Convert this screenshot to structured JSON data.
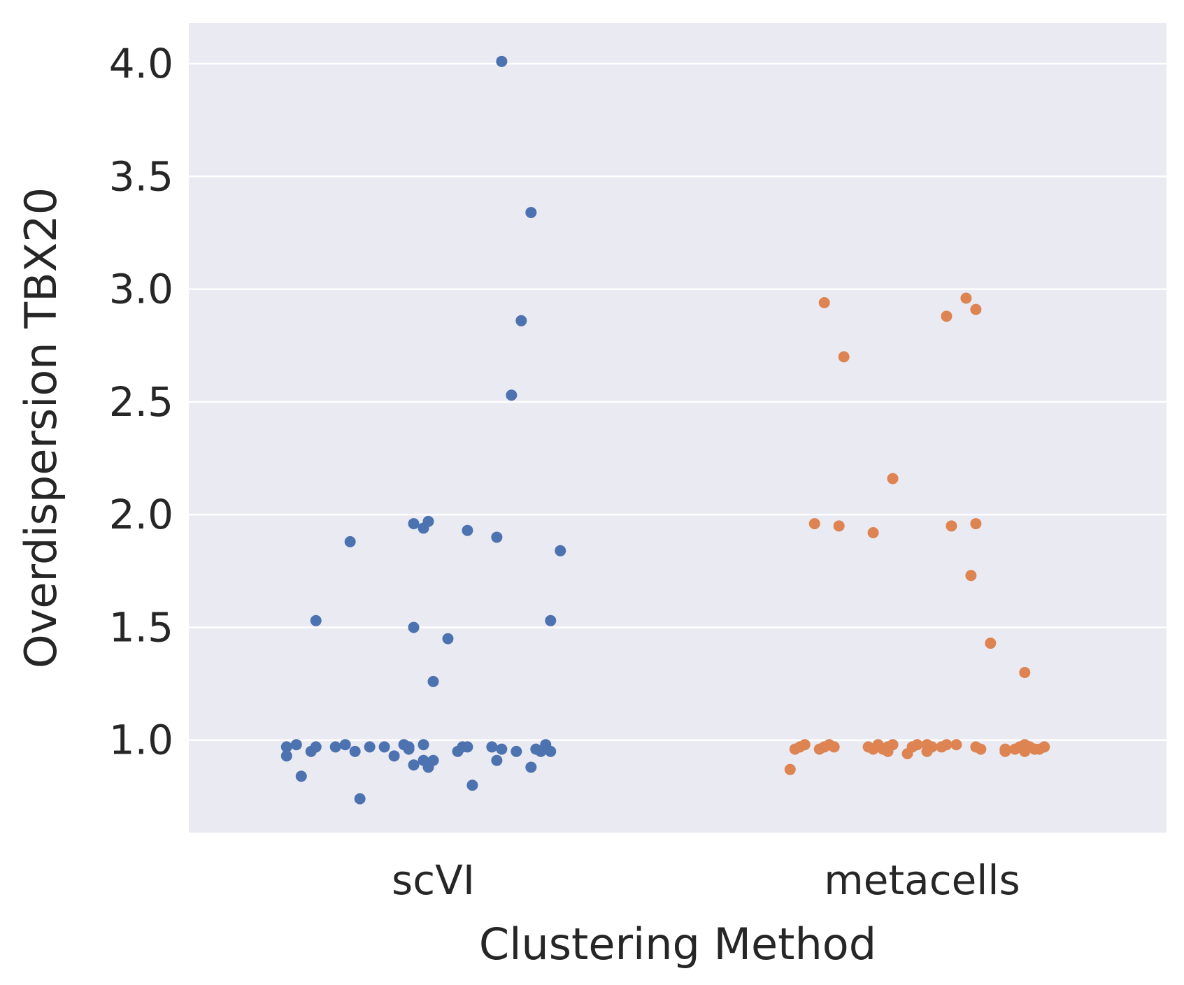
{
  "chart_data": {
    "type": "scatter",
    "style": "strip plot with horizontal jitter",
    "xlabel": "Clustering Method",
    "ylabel": "Overdispersion TBX20",
    "categories": [
      "scVI",
      "metacells"
    ],
    "ylim": [
      0.59,
      4.18
    ],
    "yticks": [
      "1.0",
      "1.5",
      "2.0",
      "2.5",
      "3.0",
      "3.5",
      "4.0"
    ],
    "grid": true,
    "colors": {
      "background": "#eaeaf2",
      "grid": "#ffffff",
      "scVI": "#4c72b0",
      "metacells": "#dd8452"
    },
    "series": [
      {
        "category": "scVI",
        "color": "#4c72b0",
        "points": [
          [
            -0.3,
            0.97
          ],
          [
            -0.3,
            0.93
          ],
          [
            -0.28,
            0.98
          ],
          [
            -0.27,
            0.84
          ],
          [
            -0.25,
            0.95
          ],
          [
            -0.24,
            1.53
          ],
          [
            -0.24,
            0.97
          ],
          [
            -0.2,
            0.97
          ],
          [
            -0.18,
            0.98
          ],
          [
            -0.17,
            1.88
          ],
          [
            -0.16,
            0.95
          ],
          [
            -0.15,
            0.74
          ],
          [
            -0.13,
            0.97
          ],
          [
            -0.1,
            0.97
          ],
          [
            -0.08,
            0.93
          ],
          [
            -0.06,
            0.98
          ],
          [
            -0.05,
            0.97
          ],
          [
            -0.05,
            0.96
          ],
          [
            -0.04,
            0.89
          ],
          [
            -0.04,
            1.5
          ],
          [
            -0.04,
            1.96
          ],
          [
            -0.02,
            1.94
          ],
          [
            -0.02,
            0.98
          ],
          [
            -0.02,
            0.91
          ],
          [
            -0.01,
            1.97
          ],
          [
            -0.01,
            0.88
          ],
          [
            0.0,
            0.91
          ],
          [
            0.0,
            1.26
          ],
          [
            0.03,
            1.45
          ],
          [
            0.05,
            0.95
          ],
          [
            0.06,
            0.97
          ],
          [
            0.07,
            0.97
          ],
          [
            0.07,
            1.93
          ],
          [
            0.08,
            0.8
          ],
          [
            0.12,
            0.97
          ],
          [
            0.13,
            0.91
          ],
          [
            0.13,
            1.9
          ],
          [
            0.14,
            4.01
          ],
          [
            0.14,
            0.96
          ],
          [
            0.16,
            2.53
          ],
          [
            0.17,
            0.95
          ],
          [
            0.18,
            2.86
          ],
          [
            0.2,
            3.34
          ],
          [
            0.2,
            0.88
          ],
          [
            0.21,
            0.96
          ],
          [
            0.22,
            0.95
          ],
          [
            0.23,
            0.98
          ],
          [
            0.24,
            1.53
          ],
          [
            0.24,
            0.95
          ],
          [
            0.26,
            1.84
          ]
        ]
      },
      {
        "category": "metacells",
        "color": "#dd8452",
        "points": [
          [
            -0.27,
            0.87
          ],
          [
            -0.26,
            0.96
          ],
          [
            -0.25,
            0.97
          ],
          [
            -0.24,
            0.98
          ],
          [
            -0.22,
            1.96
          ],
          [
            -0.21,
            0.96
          ],
          [
            -0.2,
            0.97
          ],
          [
            -0.2,
            2.94
          ],
          [
            -0.19,
            0.98
          ],
          [
            -0.18,
            0.97
          ],
          [
            -0.17,
            1.95
          ],
          [
            -0.16,
            2.7
          ],
          [
            -0.11,
            0.97
          ],
          [
            -0.1,
            0.96
          ],
          [
            -0.1,
            1.92
          ],
          [
            -0.09,
            0.98
          ],
          [
            -0.08,
            0.96
          ],
          [
            -0.07,
            0.97
          ],
          [
            -0.07,
            0.95
          ],
          [
            -0.06,
            0.98
          ],
          [
            -0.06,
            2.16
          ],
          [
            -0.03,
            0.94
          ],
          [
            -0.02,
            0.97
          ],
          [
            -0.01,
            0.98
          ],
          [
            0.01,
            0.95
          ],
          [
            0.01,
            0.98
          ],
          [
            0.02,
            0.97
          ],
          [
            0.04,
            0.97
          ],
          [
            0.05,
            0.98
          ],
          [
            0.05,
            2.88
          ],
          [
            0.06,
            1.95
          ],
          [
            0.07,
            0.98
          ],
          [
            0.09,
            2.96
          ],
          [
            0.1,
            1.73
          ],
          [
            0.11,
            0.97
          ],
          [
            0.11,
            1.96
          ],
          [
            0.11,
            2.91
          ],
          [
            0.12,
            0.96
          ],
          [
            0.14,
            1.43
          ],
          [
            0.17,
            0.96
          ],
          [
            0.17,
            0.95
          ],
          [
            0.19,
            0.96
          ],
          [
            0.2,
            0.97
          ],
          [
            0.21,
            0.98
          ],
          [
            0.21,
            1.3
          ],
          [
            0.21,
            0.95
          ],
          [
            0.22,
            0.97
          ],
          [
            0.23,
            0.96
          ],
          [
            0.24,
            0.96
          ],
          [
            0.25,
            0.97
          ]
        ]
      }
    ]
  }
}
